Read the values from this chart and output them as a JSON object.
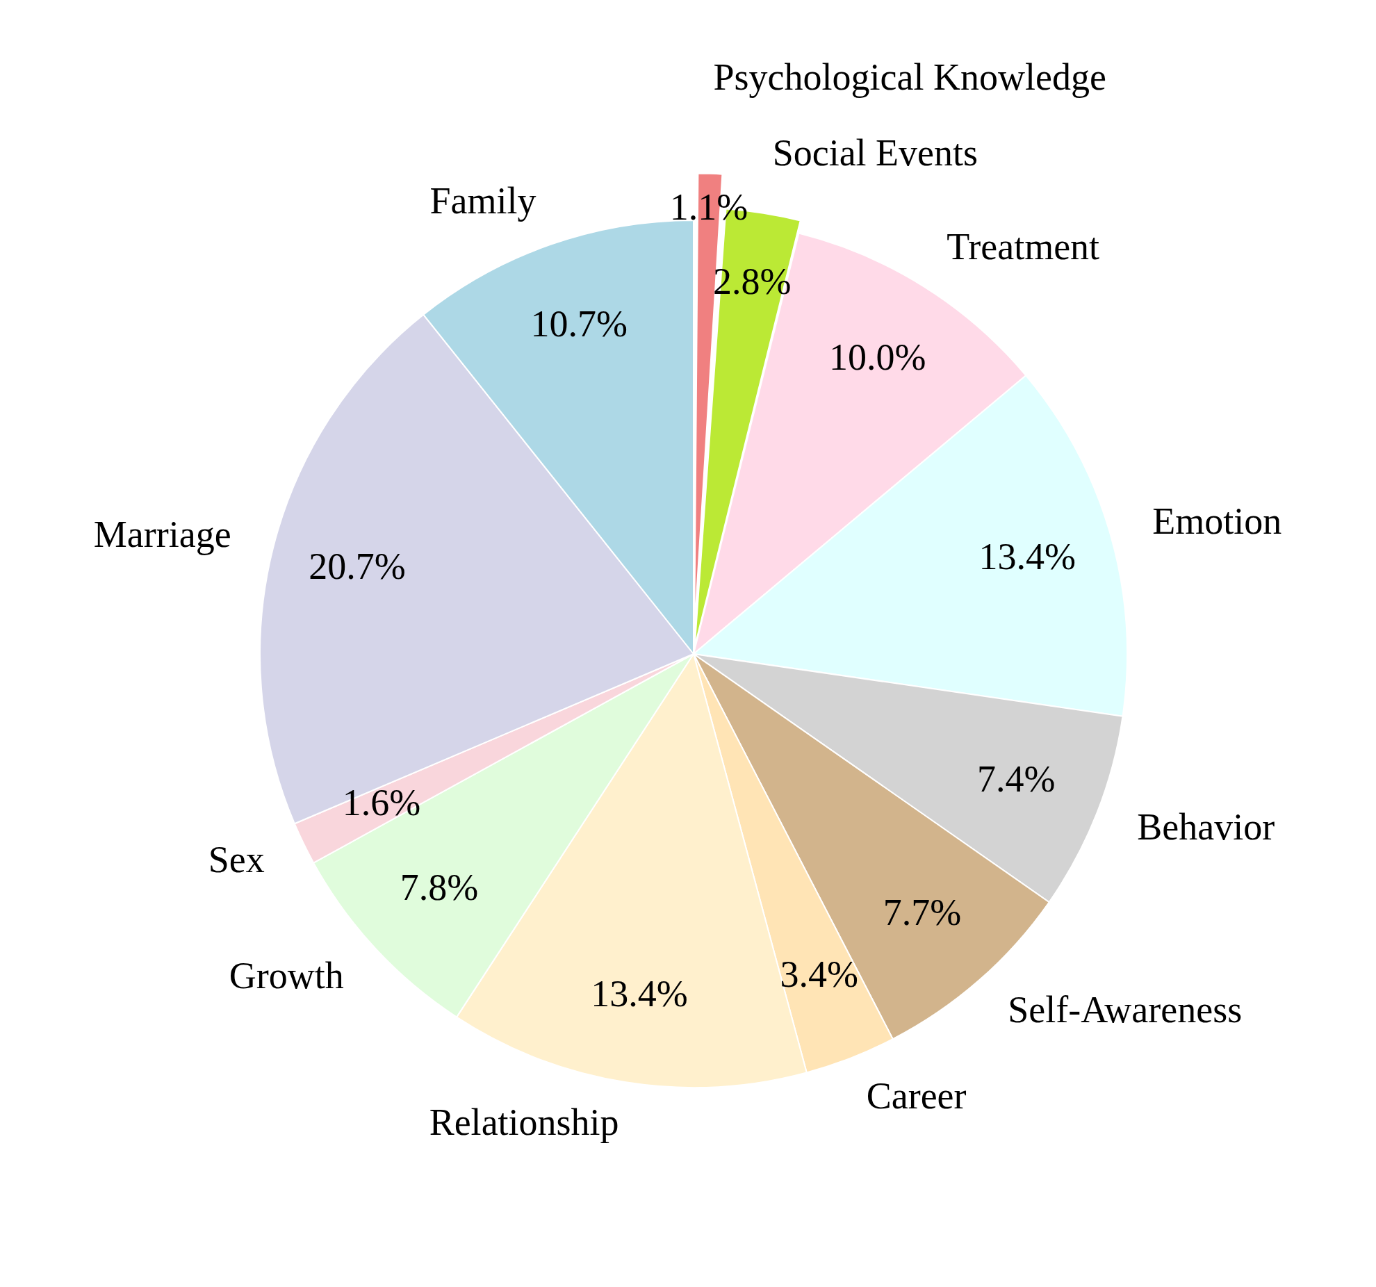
{
  "chart_data": {
    "type": "pie",
    "categories": [
      "Psychological Knowledge",
      "Social Events",
      "Treatment",
      "Emotion",
      "Behavior",
      "Self-Awareness",
      "Career",
      "Relationship",
      "Growth",
      "Sex",
      "Marriage",
      "Family"
    ],
    "values": [
      1.1,
      2.8,
      10.0,
      13.4,
      7.4,
      7.7,
      3.4,
      13.4,
      7.8,
      1.6,
      20.7,
      10.7
    ],
    "value_labels": [
      "1.1%",
      "2.8%",
      "10.0%",
      "13.4%",
      "7.4%",
      "7.7%",
      "3.4%",
      "13.4%",
      "7.8%",
      "1.6%",
      "20.7%",
      "10.7%"
    ],
    "colors": [
      "#f08080",
      "#bbe935",
      "#ffdae8",
      "#e0ffff",
      "#d3d3d3",
      "#d2b48c",
      "#ffe4b5",
      "#fff0cd",
      "#e0fcdc",
      "#f9d6dc",
      "#d5d5e9",
      "#add8e6"
    ],
    "legend": false
  }
}
